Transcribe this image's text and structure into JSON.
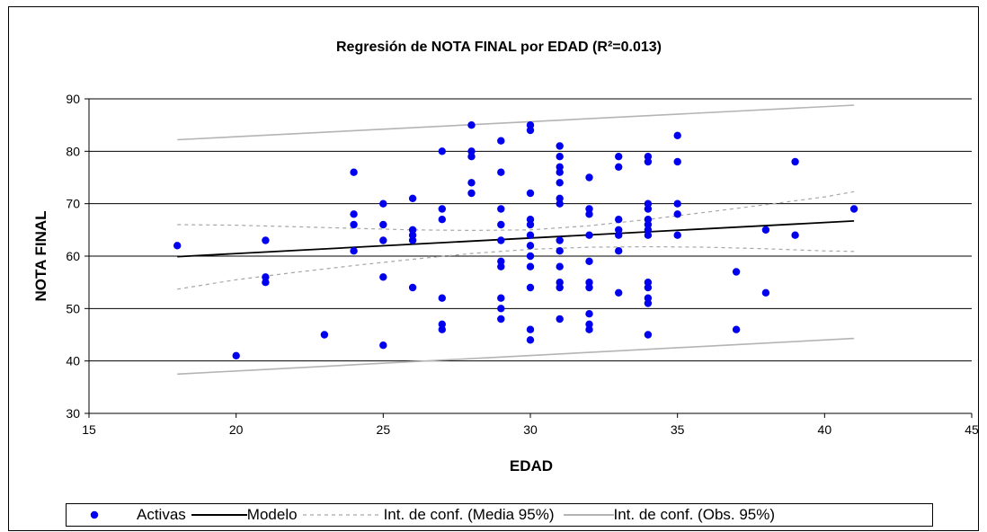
{
  "chart_data": {
    "type": "scatter",
    "title": "Regresión de NOTA FINAL por EDAD (R²=0.013)",
    "xlabel": "EDAD",
    "ylabel": "NOTA FINAL",
    "xlim": [
      15,
      45
    ],
    "ylim": [
      30,
      90
    ],
    "xticks": [
      15,
      20,
      25,
      30,
      35,
      40,
      45
    ],
    "yticks": [
      30,
      40,
      50,
      60,
      70,
      80,
      90
    ],
    "grid": "horizontal",
    "legend_position": "bottom",
    "colors": {
      "points": "#0000ee",
      "model": "#000000",
      "ci_mean": "#a6a6a6",
      "ci_obs": "#b4b4b4",
      "grid": "#000000"
    },
    "series": [
      {
        "name": "Activas",
        "kind": "points",
        "points": [
          [
            18,
            62
          ],
          [
            20,
            41
          ],
          [
            21,
            63
          ],
          [
            21,
            56
          ],
          [
            21,
            55
          ],
          [
            23,
            45
          ],
          [
            24,
            76
          ],
          [
            24,
            68
          ],
          [
            24,
            66
          ],
          [
            24,
            61
          ],
          [
            25,
            70
          ],
          [
            25,
            66
          ],
          [
            25,
            63
          ],
          [
            25,
            56
          ],
          [
            25,
            43
          ],
          [
            26,
            71
          ],
          [
            26,
            65
          ],
          [
            26,
            64
          ],
          [
            26,
            63
          ],
          [
            26,
            54
          ],
          [
            27,
            80
          ],
          [
            27,
            69
          ],
          [
            27,
            67
          ],
          [
            27,
            52
          ],
          [
            27,
            47
          ],
          [
            27,
            46
          ],
          [
            28,
            85
          ],
          [
            28,
            80
          ],
          [
            28,
            79
          ],
          [
            28,
            74
          ],
          [
            28,
            72
          ],
          [
            29,
            82
          ],
          [
            29,
            76
          ],
          [
            29,
            69
          ],
          [
            29,
            66
          ],
          [
            29,
            63
          ],
          [
            29,
            59
          ],
          [
            29,
            58
          ],
          [
            29,
            52
          ],
          [
            29,
            50
          ],
          [
            29,
            48
          ],
          [
            30,
            85
          ],
          [
            30,
            84
          ],
          [
            30,
            72
          ],
          [
            30,
            67
          ],
          [
            30,
            66
          ],
          [
            30,
            64
          ],
          [
            30,
            62
          ],
          [
            30,
            60
          ],
          [
            30,
            58
          ],
          [
            30,
            54
          ],
          [
            30,
            46
          ],
          [
            30,
            44
          ],
          [
            31,
            81
          ],
          [
            31,
            79
          ],
          [
            31,
            77
          ],
          [
            31,
            76
          ],
          [
            31,
            74
          ],
          [
            31,
            71
          ],
          [
            31,
            70
          ],
          [
            31,
            63
          ],
          [
            31,
            61
          ],
          [
            31,
            58
          ],
          [
            31,
            55
          ],
          [
            31,
            54
          ],
          [
            31,
            48
          ],
          [
            32,
            75
          ],
          [
            32,
            69
          ],
          [
            32,
            68
          ],
          [
            32,
            64
          ],
          [
            32,
            59
          ],
          [
            32,
            55
          ],
          [
            32,
            54
          ],
          [
            32,
            49
          ],
          [
            32,
            47
          ],
          [
            32,
            46
          ],
          [
            33,
            79
          ],
          [
            33,
            77
          ],
          [
            33,
            67
          ],
          [
            33,
            65
          ],
          [
            33,
            64
          ],
          [
            33,
            61
          ],
          [
            33,
            53
          ],
          [
            34,
            79
          ],
          [
            34,
            78
          ],
          [
            34,
            70
          ],
          [
            34,
            69
          ],
          [
            34,
            67
          ],
          [
            34,
            66
          ],
          [
            34,
            65
          ],
          [
            34,
            64
          ],
          [
            34,
            55
          ],
          [
            34,
            54
          ],
          [
            34,
            52
          ],
          [
            34,
            51
          ],
          [
            34,
            45
          ],
          [
            35,
            83
          ],
          [
            35,
            78
          ],
          [
            35,
            70
          ],
          [
            35,
            68
          ],
          [
            35,
            64
          ],
          [
            37,
            57
          ],
          [
            37,
            46
          ],
          [
            38,
            65
          ],
          [
            38,
            53
          ],
          [
            39,
            78
          ],
          [
            39,
            64
          ],
          [
            41,
            69
          ]
        ]
      },
      {
        "name": "Modelo",
        "kind": "line",
        "x": [
          18,
          41
        ],
        "y": [
          59.9,
          66.7
        ]
      },
      {
        "name": "Int. de conf. (Media 95%)",
        "kind": "band",
        "x": [
          18,
          20,
          22,
          24,
          26,
          28,
          30,
          32,
          34,
          36,
          38,
          40,
          41
        ],
        "lower": [
          53.7,
          55.5,
          56.9,
          58.2,
          59.4,
          60.5,
          61.3,
          61.7,
          61.8,
          61.7,
          61.4,
          61.0,
          60.9
        ],
        "upper": [
          66.0,
          65.9,
          65.6,
          65.3,
          65.0,
          64.9,
          65.0,
          65.8,
          67.0,
          68.4,
          69.8,
          71.3,
          72.3
        ]
      },
      {
        "name": "Int. de conf. (Obs. 95%)",
        "kind": "band",
        "x": [
          18,
          41
        ],
        "lower": [
          37.5,
          44.3
        ],
        "upper": [
          82.2,
          88.8
        ]
      }
    ]
  }
}
